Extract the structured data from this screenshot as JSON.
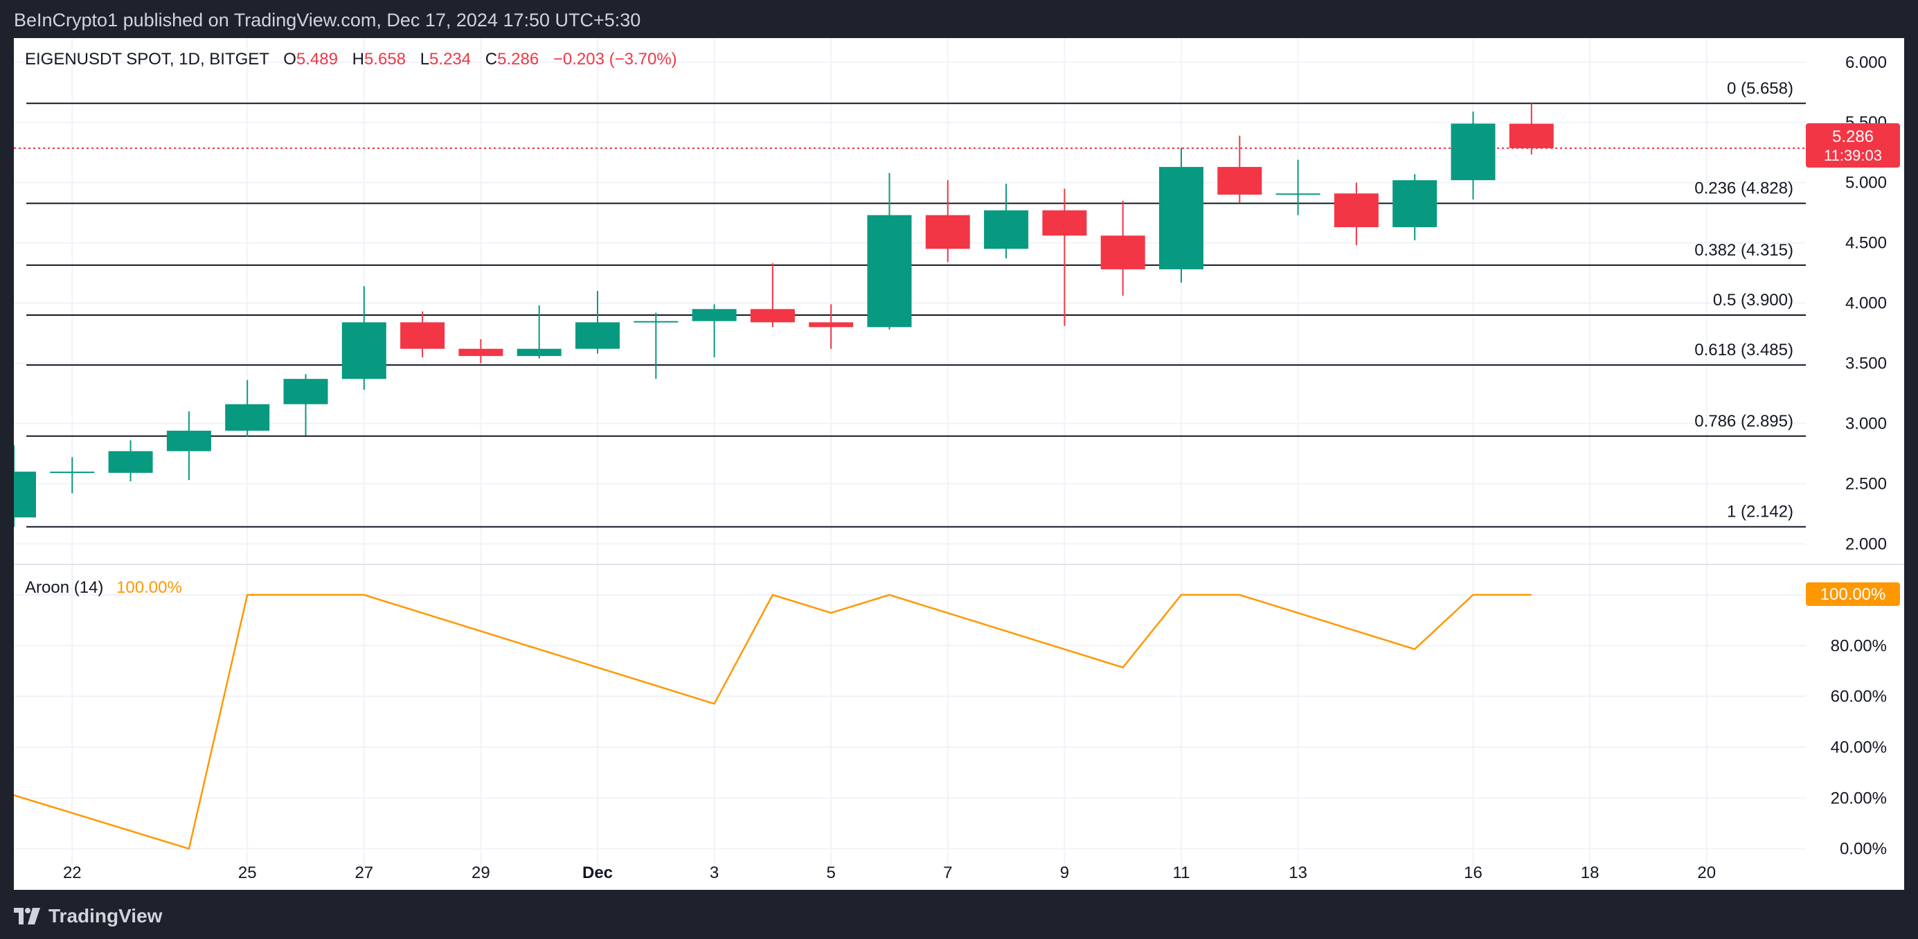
{
  "header": {
    "published": "BeInCrypto1 published on TradingView.com, Dec 17, 2024 17:50 UTC+5:30"
  },
  "legend": {
    "symbol": "EIGENUSDT SPOT, 1D, BITGET",
    "o_label": "O",
    "o_value": "5.489",
    "h_label": "H",
    "h_value": "5.658",
    "l_label": "L",
    "l_value": "5.234",
    "c_label": "C",
    "c_value": "5.286",
    "change": "−0.203 (−3.70%)"
  },
  "price_tag": {
    "price": "5.286",
    "countdown": "11:39:03"
  },
  "aroon": {
    "label": "Aroon (14)",
    "value": "100.00%",
    "tag": "100.00%"
  },
  "footer": {
    "brand": "TradingView"
  },
  "colors": {
    "up": "#089981",
    "down": "#f23645",
    "aroon": "#ff9800",
    "fib": "#131722",
    "grid": "#f0f3fa"
  },
  "chart_data": [
    {
      "type": "candlestick",
      "x_ticks": [
        {
          "label": "22",
          "idx": 1
        },
        {
          "label": "25",
          "idx": 4
        },
        {
          "label": "27",
          "idx": 6
        },
        {
          "label": "29",
          "idx": 8
        },
        {
          "label": "Dec",
          "idx": 10,
          "bold": true
        },
        {
          "label": "3",
          "idx": 12
        },
        {
          "label": "5",
          "idx": 14
        },
        {
          "label": "7",
          "idx": 16
        },
        {
          "label": "9",
          "idx": 18
        },
        {
          "label": "11",
          "idx": 20
        },
        {
          "label": "13",
          "idx": 22
        },
        {
          "label": "16",
          "idx": 25
        },
        {
          "label": "18",
          "idx": 27
        },
        {
          "label": "20",
          "idx": 29
        }
      ],
      "y_ticks": [
        "2.000",
        "2.500",
        "3.000",
        "3.500",
        "4.000",
        "4.500",
        "5.000",
        "5.500",
        "6.000"
      ],
      "ylim": [
        1.83,
        6.2
      ],
      "candles": [
        {
          "o": 2.22,
          "h": 2.82,
          "l": 2.14,
          "c": 2.6
        },
        {
          "o": 2.6,
          "h": 2.72,
          "l": 2.42,
          "c": 2.6
        },
        {
          "o": 2.59,
          "h": 2.86,
          "l": 2.52,
          "c": 2.77
        },
        {
          "o": 2.77,
          "h": 3.1,
          "l": 2.53,
          "c": 2.94
        },
        {
          "o": 2.94,
          "h": 3.36,
          "l": 2.89,
          "c": 3.16
        },
        {
          "o": 3.16,
          "h": 3.41,
          "l": 2.9,
          "c": 3.37
        },
        {
          "o": 3.37,
          "h": 4.14,
          "l": 3.28,
          "c": 3.84
        },
        {
          "o": 3.84,
          "h": 3.93,
          "l": 3.55,
          "c": 3.62
        },
        {
          "o": 3.62,
          "h": 3.7,
          "l": 3.5,
          "c": 3.56
        },
        {
          "o": 3.56,
          "h": 3.98,
          "l": 3.54,
          "c": 3.62
        },
        {
          "o": 3.62,
          "h": 4.1,
          "l": 3.58,
          "c": 3.84
        },
        {
          "o": 3.84,
          "h": 3.92,
          "l": 3.37,
          "c": 3.85
        },
        {
          "o": 3.85,
          "h": 3.99,
          "l": 3.55,
          "c": 3.95
        },
        {
          "o": 3.95,
          "h": 4.33,
          "l": 3.8,
          "c": 3.84
        },
        {
          "o": 3.84,
          "h": 3.99,
          "l": 3.62,
          "c": 3.8
        },
        {
          "o": 3.8,
          "h": 5.08,
          "l": 3.78,
          "c": 4.73
        },
        {
          "o": 4.73,
          "h": 5.02,
          "l": 4.34,
          "c": 4.45
        },
        {
          "o": 4.45,
          "h": 4.99,
          "l": 4.37,
          "c": 4.77
        },
        {
          "o": 4.77,
          "h": 4.95,
          "l": 3.81,
          "c": 4.56
        },
        {
          "o": 4.56,
          "h": 4.85,
          "l": 4.06,
          "c": 4.28
        },
        {
          "o": 4.28,
          "h": 5.29,
          "l": 4.17,
          "c": 5.13
        },
        {
          "o": 5.13,
          "h": 5.39,
          "l": 4.83,
          "c": 4.9
        },
        {
          "o": 4.9,
          "h": 5.19,
          "l": 4.73,
          "c": 4.91
        },
        {
          "o": 4.91,
          "h": 5.0,
          "l": 4.48,
          "c": 4.63
        },
        {
          "o": 4.63,
          "h": 5.07,
          "l": 4.52,
          "c": 5.02
        },
        {
          "o": 5.02,
          "h": 5.59,
          "l": 4.86,
          "c": 5.49
        },
        {
          "o": 5.489,
          "h": 5.658,
          "l": 5.234,
          "c": 5.286
        }
      ],
      "fib_levels": [
        {
          "ratio": "0",
          "price": 5.658,
          "label": "0 (5.658)"
        },
        {
          "ratio": "0.236",
          "price": 4.828,
          "label": "0.236 (4.828)"
        },
        {
          "ratio": "0.382",
          "price": 4.315,
          "label": "0.382 (4.315)"
        },
        {
          "ratio": "0.5",
          "price": 3.9,
          "label": "0.5 (3.900)"
        },
        {
          "ratio": "0.618",
          "price": 3.485,
          "label": "0.618 (3.485)"
        },
        {
          "ratio": "0.786",
          "price": 2.895,
          "label": "0.786 (2.895)"
        },
        {
          "ratio": "1",
          "price": 2.142,
          "label": "1 (2.142)"
        }
      ],
      "last_price": 5.286
    },
    {
      "type": "line",
      "name": "Aroon (14)",
      "y_ticks": [
        "100.00%",
        "80.00%",
        "60.00%",
        "40.00%",
        "20.00%",
        "0.00%"
      ],
      "ylim": [
        -8,
        112
      ],
      "points": [
        {
          "idx": -0.2,
          "v": 22.5
        },
        {
          "idx": 3,
          "v": 0
        },
        {
          "idx": 4,
          "v": 100
        },
        {
          "idx": 6,
          "v": 100
        },
        {
          "idx": 12,
          "v": 57.1
        },
        {
          "idx": 13,
          "v": 100
        },
        {
          "idx": 14,
          "v": 92.9
        },
        {
          "idx": 15,
          "v": 100
        },
        {
          "idx": 19,
          "v": 71.4
        },
        {
          "idx": 20,
          "v": 100
        },
        {
          "idx": 21,
          "v": 100
        },
        {
          "idx": 24,
          "v": 78.6
        },
        {
          "idx": 25,
          "v": 100
        },
        {
          "idx": 26,
          "v": 100
        }
      ]
    }
  ]
}
